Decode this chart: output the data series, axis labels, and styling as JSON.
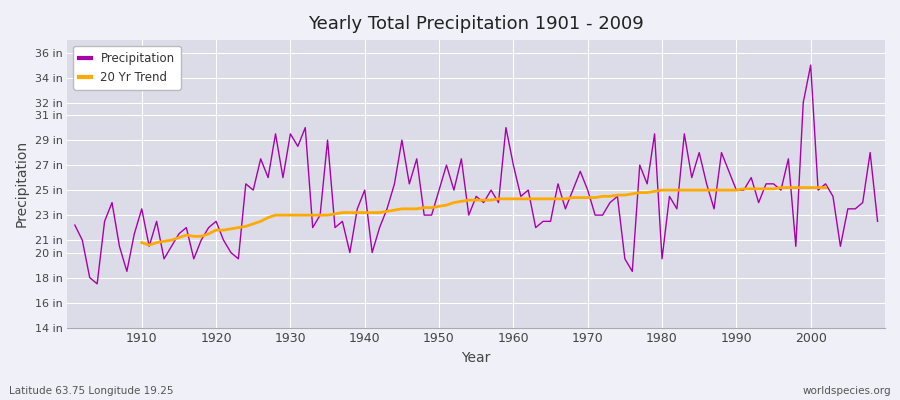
{
  "title": "Yearly Total Precipitation 1901 - 2009",
  "xlabel": "Year",
  "ylabel": "Precipitation",
  "footnote_left": "Latitude 63.75 Longitude 19.25",
  "footnote_right": "worldspecies.org",
  "legend_labels": [
    "Precipitation",
    "20 Yr Trend"
  ],
  "precip_color": "#aa00aa",
  "trend_color": "#ffaa00",
  "fig_bg_color": "#f0f0f8",
  "plot_bg_color": "#dcdce8",
  "grid_color": "#ffffff",
  "ylim": [
    14,
    37
  ],
  "yticks": [
    14,
    16,
    18,
    20,
    21,
    23,
    25,
    27,
    29,
    31,
    32,
    34,
    36
  ],
  "ytick_labels": [
    "14 in",
    "16 in",
    "18 in",
    "20 in",
    "21 in",
    "23 in",
    "25 in",
    "27 in",
    "29 in",
    "31 in",
    "32 in",
    "34 in",
    "36 in"
  ],
  "xticks": [
    1910,
    1920,
    1930,
    1940,
    1950,
    1960,
    1970,
    1980,
    1990,
    2000
  ],
  "xlim": [
    1900,
    2010
  ],
  "years": [
    1901,
    1902,
    1903,
    1904,
    1905,
    1906,
    1907,
    1908,
    1909,
    1910,
    1911,
    1912,
    1913,
    1914,
    1915,
    1916,
    1917,
    1918,
    1919,
    1920,
    1921,
    1922,
    1923,
    1924,
    1925,
    1926,
    1927,
    1928,
    1929,
    1930,
    1931,
    1932,
    1933,
    1934,
    1935,
    1936,
    1937,
    1938,
    1939,
    1940,
    1941,
    1942,
    1943,
    1944,
    1945,
    1946,
    1947,
    1948,
    1949,
    1950,
    1951,
    1952,
    1953,
    1954,
    1955,
    1956,
    1957,
    1958,
    1959,
    1960,
    1961,
    1962,
    1963,
    1964,
    1965,
    1966,
    1967,
    1968,
    1969,
    1970,
    1971,
    1972,
    1973,
    1974,
    1975,
    1976,
    1977,
    1978,
    1979,
    1980,
    1981,
    1982,
    1983,
    1984,
    1985,
    1986,
    1987,
    1988,
    1989,
    1990,
    1991,
    1992,
    1993,
    1994,
    1995,
    1996,
    1997,
    1998,
    1999,
    2000,
    2001,
    2002,
    2003,
    2004,
    2005,
    2006,
    2007,
    2008,
    2009
  ],
  "precip": [
    22.2,
    21.0,
    18.0,
    17.5,
    22.5,
    24.0,
    20.5,
    18.5,
    21.5,
    23.5,
    20.5,
    22.5,
    19.5,
    20.5,
    21.5,
    22.0,
    19.5,
    21.0,
    22.0,
    22.5,
    21.0,
    20.0,
    19.5,
    25.5,
    25.0,
    27.5,
    26.0,
    29.5,
    26.0,
    29.5,
    28.5,
    30.0,
    22.0,
    23.0,
    29.0,
    22.0,
    22.5,
    20.0,
    23.5,
    25.0,
    20.0,
    22.0,
    23.5,
    25.5,
    29.0,
    25.5,
    27.5,
    23.0,
    23.0,
    25.0,
    27.0,
    25.0,
    27.5,
    23.0,
    24.5,
    24.0,
    25.0,
    24.0,
    30.0,
    27.0,
    24.5,
    25.0,
    22.0,
    22.5,
    22.5,
    25.5,
    23.5,
    25.0,
    26.5,
    25.0,
    23.0,
    23.0,
    24.0,
    24.5,
    19.5,
    18.5,
    27.0,
    25.5,
    29.5,
    19.5,
    24.5,
    23.5,
    29.5,
    26.0,
    28.0,
    25.5,
    23.5,
    28.0,
    26.5,
    25.0,
    25.0,
    26.0,
    24.0,
    25.5,
    25.5,
    25.0,
    27.5,
    20.5,
    32.0,
    35.0,
    25.0,
    25.5,
    24.5,
    20.5,
    23.5,
    23.5,
    24.0,
    28.0,
    22.5
  ],
  "trend": [
    null,
    null,
    null,
    null,
    null,
    null,
    null,
    null,
    null,
    20.8,
    20.6,
    20.8,
    20.9,
    21.0,
    21.2,
    21.4,
    21.3,
    21.3,
    21.5,
    21.8,
    21.8,
    21.9,
    22.0,
    22.1,
    22.3,
    22.5,
    22.8,
    23.0,
    23.0,
    23.0,
    23.0,
    23.0,
    23.0,
    23.0,
    23.0,
    23.1,
    23.2,
    23.2,
    23.2,
    23.2,
    23.2,
    23.2,
    23.3,
    23.4,
    23.5,
    23.5,
    23.5,
    23.6,
    23.6,
    23.7,
    23.8,
    24.0,
    24.1,
    24.2,
    24.2,
    24.2,
    24.2,
    24.3,
    24.3,
    24.3,
    24.3,
    24.3,
    24.3,
    24.3,
    24.3,
    24.3,
    24.3,
    24.4,
    24.4,
    24.4,
    24.4,
    24.5,
    24.5,
    24.6,
    24.6,
    24.7,
    24.8,
    24.8,
    24.9,
    25.0,
    25.0,
    25.0,
    25.0,
    25.0,
    25.0,
    25.0,
    25.0,
    25.0,
    25.0,
    25.0,
    25.1,
    25.1,
    25.1,
    25.1,
    25.1,
    25.2,
    25.2,
    25.2,
    25.2,
    25.2,
    25.2,
    25.2,
    null,
    null,
    null,
    null,
    null,
    null,
    null
  ]
}
